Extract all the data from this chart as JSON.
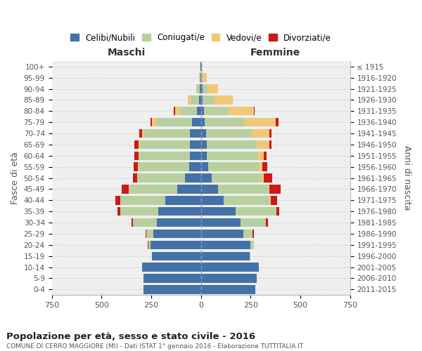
{
  "age_groups": [
    "100+",
    "95-99",
    "90-94",
    "85-89",
    "80-84",
    "75-79",
    "70-74",
    "65-69",
    "60-64",
    "55-59",
    "50-54",
    "45-49",
    "40-44",
    "35-39",
    "30-34",
    "25-29",
    "20-24",
    "15-19",
    "10-14",
    "5-9",
    "0-4"
  ],
  "birth_years": [
    "≤ 1915",
    "1916-1920",
    "1921-1925",
    "1926-1930",
    "1931-1935",
    "1936-1940",
    "1941-1945",
    "1946-1950",
    "1951-1955",
    "1956-1960",
    "1961-1965",
    "1966-1970",
    "1971-1975",
    "1976-1980",
    "1981-1985",
    "1986-1990",
    "1991-1995",
    "1996-2000",
    "2001-2005",
    "2006-2010",
    "2011-2015"
  ],
  "maschi": {
    "celibi": [
      2,
      2,
      5,
      10,
      20,
      45,
      55,
      55,
      55,
      60,
      80,
      120,
      180,
      215,
      220,
      240,
      255,
      245,
      295,
      290,
      290
    ],
    "coniugati": [
      2,
      5,
      15,
      40,
      90,
      180,
      230,
      250,
      255,
      255,
      240,
      240,
      225,
      190,
      120,
      35,
      10,
      2,
      0,
      0,
      0
    ],
    "vedovi": [
      0,
      2,
      5,
      15,
      20,
      20,
      10,
      8,
      5,
      3,
      2,
      2,
      0,
      0,
      0,
      0,
      0,
      0,
      0,
      0,
      0
    ],
    "divorziati": [
      0,
      0,
      0,
      2,
      5,
      8,
      15,
      20,
      20,
      20,
      20,
      35,
      25,
      15,
      10,
      2,
      2,
      0,
      0,
      0,
      0
    ]
  },
  "femmine": {
    "nubili": [
      2,
      2,
      8,
      10,
      15,
      20,
      25,
      30,
      30,
      35,
      55,
      85,
      115,
      175,
      200,
      215,
      250,
      245,
      290,
      280,
      275
    ],
    "coniugate": [
      2,
      8,
      25,
      60,
      120,
      200,
      230,
      250,
      255,
      255,
      250,
      255,
      230,
      205,
      125,
      45,
      15,
      5,
      0,
      0,
      0
    ],
    "vedove": [
      3,
      20,
      55,
      90,
      130,
      155,
      90,
      65,
      30,
      20,
      10,
      5,
      5,
      0,
      2,
      0,
      0,
      0,
      0,
      0,
      0
    ],
    "divorziate": [
      0,
      0,
      0,
      2,
      5,
      15,
      10,
      10,
      15,
      25,
      45,
      55,
      35,
      15,
      10,
      5,
      2,
      0,
      0,
      0,
      0
    ]
  },
  "colors": {
    "celibi": "#4472a8",
    "coniugati": "#b8d0a0",
    "vedovi": "#f0c878",
    "divorziati": "#cc1a14"
  },
  "xlim": 750,
  "title": "Popolazione per età, sesso e stato civile - 2016",
  "subtitle": "COMUNE DI CERRO MAGGIORE (MI) - Dati ISTAT 1° gennaio 2016 - Elaborazione TUTTITALIA.IT",
  "ylabel_left": "Fasce di età",
  "ylabel_right": "Anni di nascita",
  "xlabel_left": "Maschi",
  "xlabel_right": "Femmine",
  "bg_color": "#efefef",
  "grid_color": "#cccccc"
}
